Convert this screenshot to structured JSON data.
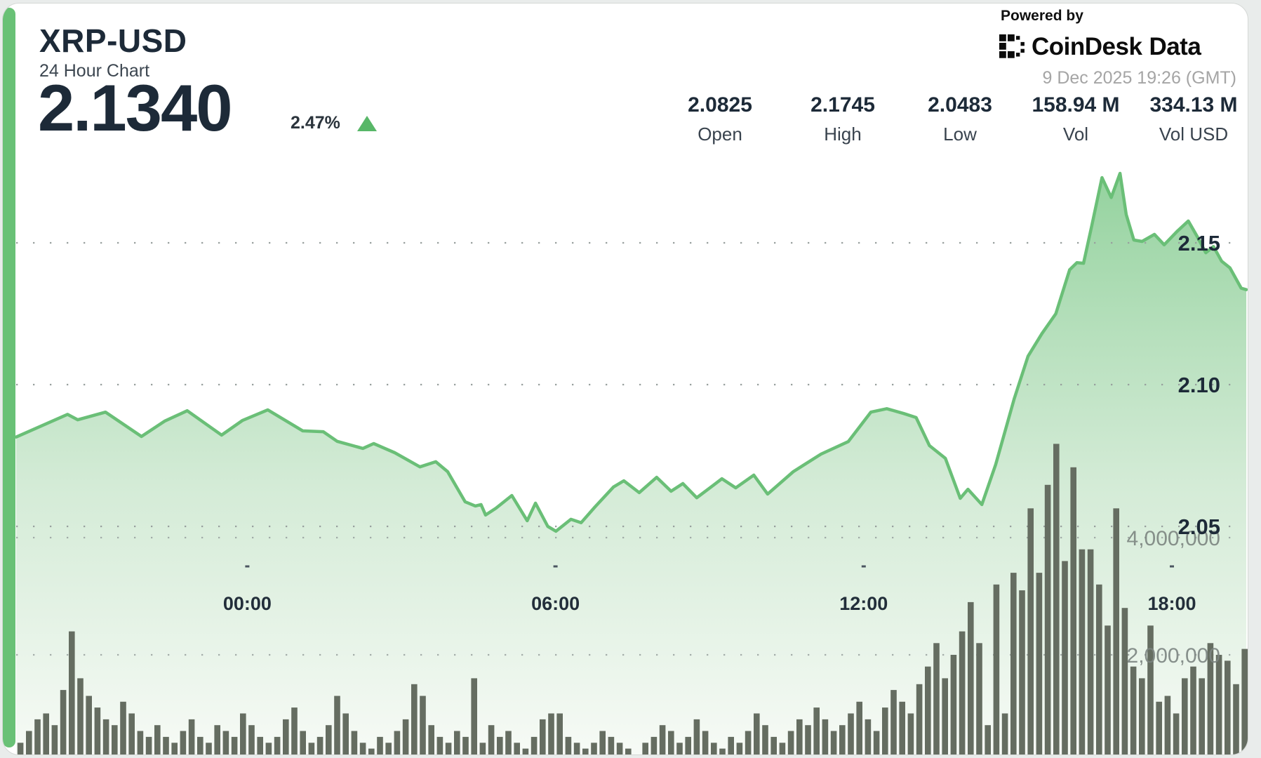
{
  "header": {
    "symbol": "XRP-USD",
    "subtitle": "24 Hour Chart",
    "price": "2.1340",
    "change_percent": "2.47%",
    "change_direction": "up",
    "powered_by": "Powered by",
    "brand": {
      "name_main": "CoinDesk",
      "name_suffix": "Data"
    },
    "timestamp": "9 Dec 2025 19:26 (GMT)"
  },
  "stats": [
    {
      "value": "2.0825",
      "label": "Open"
    },
    {
      "value": "2.1745",
      "label": "High"
    },
    {
      "value": "2.0483",
      "label": "Low"
    },
    {
      "value": "158.94 M",
      "label": "Vol"
    },
    {
      "value": "334.13 M",
      "label": "Vol USD"
    }
  ],
  "colors": {
    "accent_green": "#69c176",
    "line_green": "#6abf77",
    "fill_green_top": "#8ccf97",
    "volume_bar": "#656d61",
    "text_dark": "#1d2a38",
    "text_gray": "#a5a5a5",
    "grid_dot": "#98a09e",
    "triangle_up": "#58b768"
  },
  "chart_data": [
    {
      "type": "area",
      "name": "XRP-USD price, 24 hour",
      "x_unit": "hours since chart start (~19:30 GMT previous day)",
      "x_ticks": [
        {
          "h": 4.5,
          "label": "00:00"
        },
        {
          "h": 10.5,
          "label": "06:00"
        },
        {
          "h": 16.5,
          "label": "12:00"
        },
        {
          "h": 22.5,
          "label": "18:00"
        }
      ],
      "y_axis": {
        "range": [
          2.03,
          2.185
        ],
        "ticks": [
          {
            "value": 2.05,
            "label": "2.05"
          },
          {
            "value": 2.1,
            "label": "2.10"
          },
          {
            "value": 2.15,
            "label": "2.15"
          }
        ]
      },
      "open": 2.0825,
      "high": 2.1745,
      "low": 2.0483,
      "last": 2.134,
      "points": [
        [
          0.0,
          2.0815
        ],
        [
          1.0,
          2.0895
        ],
        [
          1.2,
          2.0876
        ],
        [
          1.74,
          2.0903
        ],
        [
          2.44,
          2.0817
        ],
        [
          2.89,
          2.0871
        ],
        [
          3.33,
          2.0908
        ],
        [
          4.0,
          2.0822
        ],
        [
          4.41,
          2.0874
        ],
        [
          4.9,
          2.0911
        ],
        [
          5.58,
          2.0837
        ],
        [
          5.98,
          2.0834
        ],
        [
          6.25,
          2.08
        ],
        [
          6.75,
          2.0775
        ],
        [
          6.96,
          2.0792
        ],
        [
          7.37,
          2.076
        ],
        [
          7.86,
          2.071
        ],
        [
          8.17,
          2.0728
        ],
        [
          8.4,
          2.0693
        ],
        [
          8.74,
          2.0587
        ],
        [
          8.94,
          2.0572
        ],
        [
          9.05,
          2.0577
        ],
        [
          9.14,
          2.054
        ],
        [
          9.34,
          2.0564
        ],
        [
          9.65,
          2.0609
        ],
        [
          9.95,
          2.052
        ],
        [
          10.11,
          2.0582
        ],
        [
          10.35,
          2.05
        ],
        [
          10.51,
          2.0483
        ],
        [
          10.8,
          2.0525
        ],
        [
          11.0,
          2.0513
        ],
        [
          11.27,
          2.0569
        ],
        [
          11.63,
          2.0639
        ],
        [
          11.83,
          2.0661
        ],
        [
          12.13,
          2.0619
        ],
        [
          12.47,
          2.0673
        ],
        [
          12.75,
          2.0624
        ],
        [
          12.98,
          2.0651
        ],
        [
          13.25,
          2.0601
        ],
        [
          13.74,
          2.0668
        ],
        [
          14.01,
          2.0636
        ],
        [
          14.36,
          2.0681
        ],
        [
          14.63,
          2.0614
        ],
        [
          15.13,
          2.0693
        ],
        [
          15.67,
          2.0755
        ],
        [
          16.2,
          2.0799
        ],
        [
          16.64,
          2.0903
        ],
        [
          16.95,
          2.0915
        ],
        [
          17.28,
          2.0898
        ],
        [
          17.52,
          2.0884
        ],
        [
          17.78,
          2.0785
        ],
        [
          18.09,
          2.074
        ],
        [
          18.38,
          2.0599
        ],
        [
          18.53,
          2.0631
        ],
        [
          18.8,
          2.0577
        ],
        [
          19.07,
          2.0718
        ],
        [
          19.43,
          2.095
        ],
        [
          19.7,
          2.11
        ],
        [
          19.97,
          2.118
        ],
        [
          20.24,
          2.125
        ],
        [
          20.51,
          2.1405
        ],
        [
          20.65,
          2.143
        ],
        [
          20.78,
          2.1428
        ],
        [
          20.94,
          2.156
        ],
        [
          21.14,
          2.173
        ],
        [
          21.32,
          2.166
        ],
        [
          21.49,
          2.1745
        ],
        [
          21.61,
          2.16
        ],
        [
          21.76,
          2.151
        ],
        [
          21.92,
          2.1505
        ],
        [
          22.16,
          2.153
        ],
        [
          22.35,
          2.1493
        ],
        [
          22.6,
          2.154
        ],
        [
          22.82,
          2.1577
        ],
        [
          23.0,
          2.152
        ],
        [
          23.16,
          2.1465
        ],
        [
          23.31,
          2.1487
        ],
        [
          23.47,
          2.1435
        ],
        [
          23.63,
          2.1412
        ],
        [
          23.85,
          2.134
        ],
        [
          23.95,
          2.1335
        ]
      ]
    },
    {
      "type": "bar",
      "name": "Volume (10-minute bars)",
      "y_axis": {
        "ticks": [
          {
            "value_millions": 2,
            "label": "2,000,000"
          },
          {
            "value_millions": 4,
            "label": "4,000,000"
          }
        ]
      },
      "values_millions": [
        0.5,
        0.7,
        0.9,
        1.0,
        0.8,
        1.4,
        2.4,
        1.6,
        1.3,
        1.1,
        0.9,
        0.8,
        1.2,
        1.0,
        0.7,
        0.6,
        0.8,
        0.6,
        0.5,
        0.7,
        0.9,
        0.6,
        0.5,
        0.8,
        0.7,
        0.6,
        1.0,
        0.8,
        0.6,
        0.5,
        0.6,
        0.9,
        1.1,
        0.7,
        0.5,
        0.6,
        0.8,
        1.3,
        1.0,
        0.7,
        0.5,
        0.4,
        0.6,
        0.5,
        0.7,
        0.9,
        1.5,
        1.3,
        0.8,
        0.6,
        0.5,
        0.7,
        0.6,
        1.6,
        0.5,
        0.8,
        0.6,
        0.7,
        0.5,
        0.4,
        0.6,
        0.9,
        1.0,
        1.0,
        0.6,
        0.5,
        0.4,
        0.5,
        0.7,
        0.6,
        0.5,
        0.4,
        0.3,
        0.5,
        0.6,
        0.8,
        0.7,
        0.5,
        0.6,
        0.9,
        0.7,
        0.5,
        0.4,
        0.6,
        0.5,
        0.7,
        1.0,
        0.8,
        0.6,
        0.5,
        0.7,
        0.9,
        0.8,
        1.1,
        0.9,
        0.7,
        0.8,
        1.0,
        1.2,
        0.9,
        0.7,
        1.1,
        1.4,
        1.2,
        1.0,
        1.5,
        1.8,
        2.2,
        1.6,
        2.0,
        2.4,
        2.9,
        2.2,
        0.8,
        3.2,
        1.0,
        3.4,
        3.1,
        4.5,
        3.4,
        4.9,
        5.6,
        3.6,
        5.2,
        3.8,
        3.8,
        3.2,
        2.5,
        4.5,
        2.8,
        1.8,
        1.6,
        2.5,
        1.2,
        1.3,
        1.0,
        1.6,
        1.8,
        1.6,
        2.2,
        2.0,
        1.9,
        1.5,
        2.1
      ]
    }
  ]
}
